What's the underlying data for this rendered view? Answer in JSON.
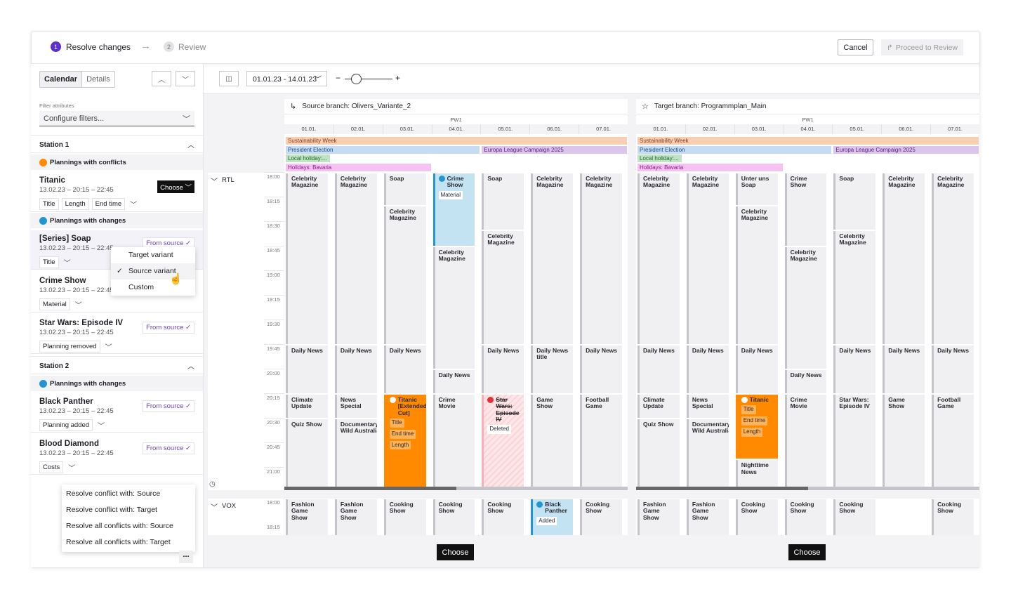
{
  "header": {
    "steps": [
      {
        "num": "1",
        "label": "Resolve changes",
        "active": true
      },
      {
        "num": "2",
        "label": "Review",
        "active": false
      }
    ],
    "cancel": "Cancel",
    "proceed": "Proceed to Review"
  },
  "toolbar": {
    "view_tabs": [
      "Calendar",
      "Details"
    ],
    "active_tab": "Calendar",
    "date_range": "01.01.23 - 14.01.23",
    "zoom_minus": "−",
    "zoom_plus": "+",
    "zoom_level": 0.15
  },
  "left": {
    "filter_label": "Filter attributes",
    "filter_placeholder": "Configure filters...",
    "stations": [
      {
        "name": "Station 1",
        "groups": [
          {
            "label": "Plannings with conflicts",
            "type": "conflict",
            "items": [
              {
                "title": "Titanic",
                "date": "13.02.23 – 20:15 – 22:45",
                "tags": [
                  "Title",
                  "Length",
                  "End time"
                ],
                "action": "Choose"
              }
            ]
          },
          {
            "label": "Plannings with changes",
            "type": "change",
            "items": [
              {
                "title": "[Series] Soap",
                "date": "13.02.23 – 20:15 – 22:45",
                "tags": [
                  "Title"
                ],
                "action": "From source",
                "selected": true
              },
              {
                "title": "Crime Show",
                "date": "13.02.23 – 20:15 – 22:45",
                "tags": [
                  "Material"
                ],
                "action": ""
              },
              {
                "title": "Star Wars: Episode IV",
                "date": "13.02.23 – 20:15 – 22:45",
                "tags": [
                  "Planning removed"
                ],
                "action": "From source"
              }
            ]
          }
        ]
      },
      {
        "name": "Station 2",
        "groups": [
          {
            "label": "Plannings with changes",
            "type": "change",
            "items": [
              {
                "title": "Black Panther",
                "date": "13.02.23 – 20:15 – 22:45",
                "tags": [
                  "Planning added"
                ],
                "action": "From source"
              },
              {
                "title": "Blood Diamond",
                "date": "13.02.23 – 20:15 – 22:45",
                "tags": [
                  "Costs"
                ],
                "action": "From source"
              }
            ]
          }
        ]
      }
    ],
    "variant_menu": {
      "options": [
        "Target variant",
        "Source variant",
        "Custom"
      ],
      "checked": "Source variant"
    },
    "resolve_menu": [
      "Resolve conflict with: Source",
      "Resolve conflict with: Target",
      "Resolve all conflicts with: Source",
      "Resolve all conflicts with: Target"
    ],
    "more": "..."
  },
  "colors": {
    "accent": "#5b2ecf",
    "conflict": "#ff8a00",
    "changed": "#2196d3",
    "deleted": "#e0323c"
  },
  "calendar": {
    "week": "PW1",
    "days": [
      "01.01.",
      "02.01.",
      "03.01.",
      "04.01.",
      "05.01.",
      "06.01.",
      "07.01."
    ],
    "times": [
      "18:00",
      "18:15",
      "18:30",
      "18:45",
      "19:00",
      "19:15",
      "19:30",
      "19:45",
      "20:00",
      "20:15",
      "20:30",
      "20:45",
      "21:00"
    ],
    "vox_times": [
      "18:00",
      "18:15"
    ],
    "stations": [
      "RTL",
      "VOX"
    ],
    "bands": [
      {
        "label": "Sustainability Week",
        "from": 0,
        "to": 7,
        "row": 0,
        "bg": "#f9cfb4",
        "fg": "#8a3b12"
      },
      {
        "label": "President Election",
        "from": 0,
        "to": 4,
        "row": 1,
        "bg": "#c5dcf3",
        "fg": "#1c4f8a"
      },
      {
        "label": "Europa League Campaign 2025",
        "from": 4,
        "to": 7,
        "row": 1,
        "bg": "#dcc5ea",
        "fg": "#5a1f80"
      },
      {
        "label": "Local holiday:...",
        "from": 0,
        "to": 0.95,
        "row": 2,
        "bg": "#bfe3c4",
        "fg": "#1f6a2a"
      },
      {
        "label": "Holidays: Bavaria",
        "from": 0,
        "to": 3,
        "row": 3,
        "bg": "#f5c2f2",
        "fg": "#8a1a86"
      }
    ],
    "source": {
      "title": "Source branch: Olivers_Variante_2",
      "choose": "Choose",
      "rtl": [
        [
          [
            "Celebrity Magazine",
            "18:00",
            "19:45"
          ],
          [
            "Daily News",
            "19:45",
            "20:15"
          ],
          [
            "Climate Update",
            "20:15",
            "20:30"
          ],
          [
            "Quiz Show",
            "20:30",
            "21:20"
          ]
        ],
        [
          [
            "Celebrity Magazine",
            "18:00",
            "19:45"
          ],
          [
            "Daily News",
            "19:45",
            "20:15"
          ],
          [
            "News Special",
            "20:15",
            "20:30"
          ],
          [
            "Documentary: Wild Australia",
            "20:30",
            "21:20"
          ]
        ],
        [
          [
            "Soap",
            "18:00",
            "18:20"
          ],
          [
            "Celebrity Magazine",
            "18:20",
            "19:45"
          ],
          [
            "Daily News",
            "19:45",
            "20:15"
          ],
          [
            "Titanic [Extended Cut]",
            "20:15",
            "21:20",
            "conflict",
            [
              "Title",
              "End time",
              "Length"
            ]
          ]
        ],
        [
          [
            "Crime Show",
            "18:00",
            "18:45",
            "changed",
            [
              "Material"
            ]
          ],
          [
            "Celebrity Magazine",
            "18:45",
            "20:00"
          ],
          [
            "Daily News",
            "20:00",
            "20:15"
          ],
          [
            "Crime Movie",
            "20:15",
            "21:20"
          ]
        ],
        [
          [
            "Soap",
            "18:00",
            "18:35"
          ],
          [
            "Celebrity Magazine",
            "18:35",
            "19:45"
          ],
          [
            "Daily News",
            "19:45",
            "20:15"
          ],
          [
            "Star Wars: Episode IV",
            "20:15",
            "21:20",
            "deleted",
            [
              "Deleted"
            ]
          ]
        ],
        [
          [
            "Celebrity Magazine",
            "18:00",
            "19:45"
          ],
          [
            "Daily News title",
            "19:45",
            "20:15"
          ],
          [
            "Game Show",
            "20:15",
            "21:20"
          ]
        ],
        [
          [
            "Celebrity Magazine",
            "18:00",
            "19:45"
          ],
          [
            "Daily News",
            "19:45",
            "20:15"
          ],
          [
            "Football Game",
            "20:15",
            "21:20"
          ]
        ]
      ],
      "vox": [
        [
          "Fashion Game Show"
        ],
        [
          "Fashion Game Show"
        ],
        [
          "Cooking Show"
        ],
        [
          "Cooking Show"
        ],
        [
          "Cooking Show"
        ],
        [
          "Black Panther",
          "changed",
          [
            "Added"
          ]
        ],
        [
          "Cooking Show"
        ]
      ]
    },
    "target": {
      "title": "Target branch: Programmplan_Main",
      "choose": "Choose",
      "rtl": [
        [
          [
            "Celebrity Magazine",
            "18:00",
            "19:45"
          ],
          [
            "Daily News",
            "19:45",
            "20:15"
          ],
          [
            "Climate Update",
            "20:15",
            "20:30"
          ],
          [
            "Quiz Show",
            "20:30",
            "21:20"
          ]
        ],
        [
          [
            "Celebrity Magazine",
            "18:00",
            "19:45"
          ],
          [
            "Daily News",
            "19:45",
            "20:15"
          ],
          [
            "News Special",
            "20:15",
            "20:30"
          ],
          [
            "Documentary: Wild Australia",
            "20:30",
            "21:20"
          ]
        ],
        [
          [
            "Unter uns Soap",
            "18:00",
            "18:20"
          ],
          [
            "Celebrity Magazine",
            "18:20",
            "19:45"
          ],
          [
            "Daily News",
            "19:45",
            "20:15"
          ],
          [
            "Titanic",
            "20:15",
            "20:55",
            "conflict",
            [
              "Title",
              "End time",
              "Length"
            ]
          ],
          [
            "Nighttime News",
            "20:55",
            "21:20"
          ]
        ],
        [
          [
            "Crime Show",
            "18:00",
            "18:45"
          ],
          [
            "Celebrity Magazine",
            "18:45",
            "20:00"
          ],
          [
            "Daily News",
            "20:00",
            "20:15"
          ],
          [
            "Crime Movie",
            "20:15",
            "21:20"
          ]
        ],
        [
          [
            "Soap",
            "18:00",
            "18:35"
          ],
          [
            "Celebrity Magazine",
            "18:35",
            "19:45"
          ],
          [
            "Daily News",
            "19:45",
            "20:15"
          ],
          [
            "Star Wars: Episode IV",
            "20:15",
            "21:20"
          ]
        ],
        [
          [
            "Celebrity Magazine",
            "18:00",
            "19:45"
          ],
          [
            "Daily News",
            "19:45",
            "20:15"
          ],
          [
            "Game Show",
            "20:15",
            "21:20"
          ]
        ],
        [
          [
            "Celebrity Magazine",
            "18:00",
            "19:45"
          ],
          [
            "Daily News",
            "19:45",
            "20:15"
          ],
          [
            "Football Game",
            "20:15",
            "21:20"
          ]
        ]
      ],
      "vox": [
        [
          "Fashion Game Show"
        ],
        [
          "Fashion Game Show"
        ],
        [
          "Cooking Show"
        ],
        [
          "Cooking Show"
        ],
        [
          "Cooking Show"
        ],
        null,
        [
          "Cooking Show"
        ]
      ]
    }
  }
}
